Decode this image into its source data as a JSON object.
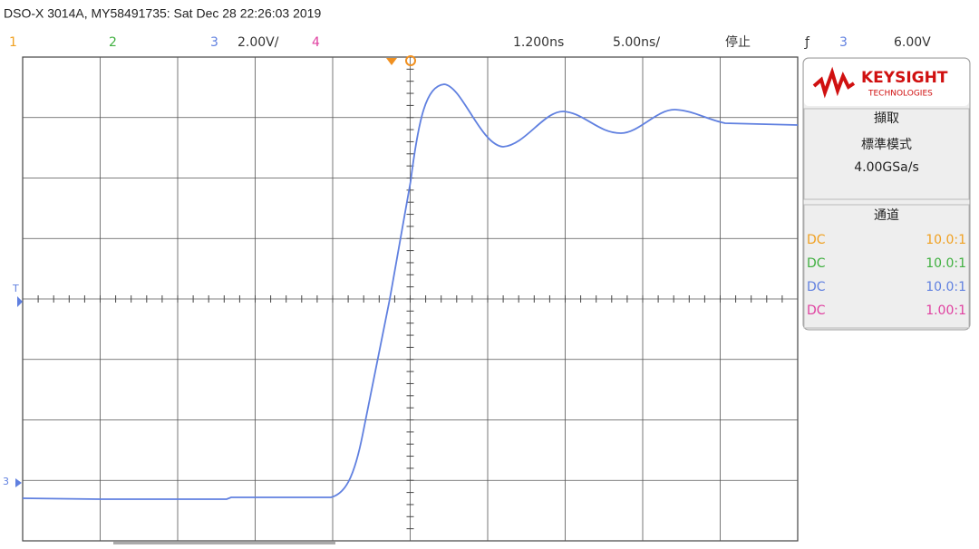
{
  "header": {
    "title": "DSO-X 3014A, MY58491735: Sat Dec 28 22:26:03 2019"
  },
  "status": {
    "ch1": "1",
    "ch2": "2",
    "ch3": "3",
    "ch3_scale": "2.00V/",
    "ch4": "4",
    "delay": "1.200ns",
    "timebase": "5.00ns/",
    "state": "停止",
    "trigger_source": "3",
    "trigger_level": "6.00V"
  },
  "markers": {
    "trigger": "T",
    "ch3": "3"
  },
  "panel": {
    "brand": "KEYSIGHT",
    "brand_sub": "TECHNOLOGIES",
    "acquire": {
      "title": "擷取",
      "mode": "標準模式",
      "rate": "4.00GSa/s"
    },
    "channels": {
      "title": "通道",
      "rows": [
        [
          "DC",
          "10.0:1"
        ],
        [
          "DC",
          "10.0:1"
        ],
        [
          "DC",
          "10.0:1"
        ],
        [
          "DC",
          "1.00:1"
        ]
      ]
    }
  }
}
